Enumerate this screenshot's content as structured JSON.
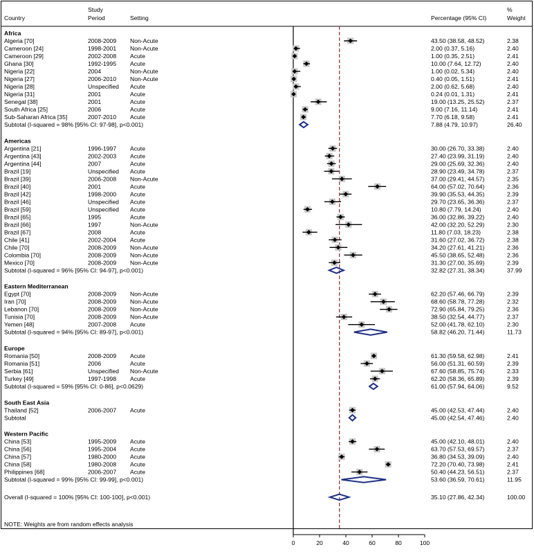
{
  "chart_data": {
    "type": "forest",
    "columns": {
      "country": "Country",
      "period": [
        "Study",
        "Period"
      ],
      "setting": "Setting",
      "estimate": "Percentage (95% CI)",
      "weight": [
        "%",
        "Weight"
      ]
    },
    "xlim": [
      0,
      100
    ],
    "xticks": [
      0,
      20,
      40,
      60,
      80,
      100
    ],
    "reference_line": 35.1,
    "groups": [
      {
        "name": "Africa",
        "studies": [
          {
            "country": "Algeria [70]",
            "period": "2008-2009",
            "setting": "Non-Acute",
            "est": 43.5,
            "lo": 38.58,
            "hi": 48.52,
            "label": "43.50 (38.58, 48.52)",
            "weight": "2.38"
          },
          {
            "country": "Cameroon [24]",
            "period": "1998-2001",
            "setting": "Non-Acute",
            "est": 2.0,
            "lo": 0.37,
            "hi": 5.16,
            "label": "2.00 (0.37, 5.16)",
            "weight": "2.40"
          },
          {
            "country": "Cameroon [29]",
            "period": "2002-2008",
            "setting": "Acute",
            "est": 1.0,
            "lo": 0.35,
            "hi": 2.51,
            "label": "1.00 (0.35, 2.51)",
            "weight": "2.41"
          },
          {
            "country": "Ghana [30]",
            "period": "1992-1995",
            "setting": "Acute",
            "est": 10.0,
            "lo": 7.64,
            "hi": 12.72,
            "label": "10.00 (7.64, 12.72)",
            "weight": "2.40"
          },
          {
            "country": "Nigeria [22]",
            "period": "2004",
            "setting": "Non-Acute",
            "est": 1.0,
            "lo": 0.02,
            "hi": 5.34,
            "label": "1.00 (0.02, 5.34)",
            "weight": "2.40"
          },
          {
            "country": "Nigeria [27]",
            "period": "2006-2010",
            "setting": "Non-Acute",
            "est": 0.4,
            "lo": 0.05,
            "hi": 1.51,
            "label": "0.40 (0.05, 1.51)",
            "weight": "2.41"
          },
          {
            "country": "Nigeria [28]",
            "period": "Unspecified",
            "setting": "Acute",
            "est": 2.0,
            "lo": 0.62,
            "hi": 5.68,
            "label": "2.00 (0.62, 5.68)",
            "weight": "2.40"
          },
          {
            "country": "Nigeria [31]",
            "period": "2001",
            "setting": "Acute",
            "est": 0.24,
            "lo": 0.01,
            "hi": 1.31,
            "label": "0.24 (0.01, 1.31)",
            "weight": "2.41"
          },
          {
            "country": "Senegal [38]",
            "period": "2001",
            "setting": "Acute",
            "est": 19.0,
            "lo": 13.25,
            "hi": 25.52,
            "label": "19.00 (13.25, 25.52)",
            "weight": "2.37"
          },
          {
            "country": "South Africa [25]",
            "period": "2006",
            "setting": "Acute",
            "est": 9.0,
            "lo": 7.16,
            "hi": 11.14,
            "label": "9.00 (7.16, 11.14)",
            "weight": "2.41"
          },
          {
            "country": "Sub-Saharan Africa [35]",
            "period": "2007-2010",
            "setting": "Acute",
            "est": 7.7,
            "lo": 6.18,
            "hi": 9.58,
            "label": "7.70 (6.18, 9.58)",
            "weight": "2.41"
          }
        ],
        "subtotal": {
          "label": "Subtotal  (I-squared = 98% [95% CI: 97-98], p<0.001)",
          "est": 7.88,
          "lo": 4.79,
          "hi": 10.97,
          "ci_label": "7.88 (4.79, 10.97)",
          "weight": "26.40"
        }
      },
      {
        "name": "Americas",
        "studies": [
          {
            "country": "Argentina [21]",
            "period": "1996-1997",
            "setting": "Acute",
            "est": 30.0,
            "lo": 26.7,
            "hi": 33.38,
            "label": "30.00 (26.70, 33.38)",
            "weight": "2.40"
          },
          {
            "country": "Argentina [43]",
            "period": "2002-2003",
            "setting": "Acute",
            "est": 27.4,
            "lo": 23.99,
            "hi": 31.19,
            "label": "27.40 (23.99, 31.19)",
            "weight": "2.40"
          },
          {
            "country": "Argentina [44]",
            "period": "2007",
            "setting": "Acute",
            "est": 29.0,
            "lo": 25.69,
            "hi": 32.36,
            "label": "29.00 (25.69, 32.36)",
            "weight": "2.40"
          },
          {
            "country": "Brazil [19]",
            "period": "Unspecified",
            "setting": "Acute",
            "est": 28.9,
            "lo": 23.49,
            "hi": 34.78,
            "label": "28.90 (23.49, 34.78)",
            "weight": "2.37"
          },
          {
            "country": "Brazil [39]",
            "period": "2006-2008",
            "setting": "Non-Acute",
            "est": 37.0,
            "lo": 29.41,
            "hi": 44.57,
            "label": "37.00 (29.41, 44.57)",
            "weight": "2.35"
          },
          {
            "country": "Brazil [40]",
            "period": "2001",
            "setting": "Acute",
            "est": 64.0,
            "lo": 57.02,
            "hi": 70.64,
            "label": "64.00 (57.02, 70.64)",
            "weight": "2.36"
          },
          {
            "country": "Brazil [42]",
            "period": "1998-2000",
            "setting": "Acute",
            "est": 39.9,
            "lo": 35.53,
            "hi": 44.35,
            "label": "39.90 (35.53, 44.35)",
            "weight": "2.39"
          },
          {
            "country": "Brazil [46]",
            "period": "Unspecified",
            "setting": "Acute",
            "est": 29.7,
            "lo": 23.65,
            "hi": 36.36,
            "label": "29.70 (23.65, 36.36)",
            "weight": "2.37"
          },
          {
            "country": "Brazil [59]",
            "period": "Unspecified",
            "setting": "Acute",
            "est": 10.8,
            "lo": 7.79,
            "hi": 14.24,
            "label": "10.80 (7.79, 14.24)",
            "weight": "2.40"
          },
          {
            "country": "Brazil [65]",
            "period": "1995",
            "setting": "Acute",
            "est": 36.0,
            "lo": 32.86,
            "hi": 39.22,
            "label": "36.00 (32.86, 39.22)",
            "weight": "2.40"
          },
          {
            "country": "Brazil [66]",
            "period": "1997",
            "setting": "Non-Acute",
            "est": 42.0,
            "lo": 32.2,
            "hi": 52.29,
            "label": "42.00 (32.20, 52.29)",
            "weight": "2.30"
          },
          {
            "country": "Brazil [67]",
            "period": "2008",
            "setting": "Acute",
            "est": 11.8,
            "lo": 7.03,
            "hi": 18.23,
            "label": "11.80 (7.03, 18.23)",
            "weight": "2.38"
          },
          {
            "country": "Chile [41]",
            "period": "2002-2004",
            "setting": "Acute",
            "est": 31.6,
            "lo": 27.02,
            "hi": 36.72,
            "label": "31.60 (27.02, 36.72)",
            "weight": "2.38"
          },
          {
            "country": "Chile [70]",
            "period": "2008-2009",
            "setting": "Non-Acute",
            "est": 34.2,
            "lo": 27.61,
            "hi": 41.21,
            "label": "34.20 (27.61, 41.21)",
            "weight": "2.36"
          },
          {
            "country": "Colombia [70]",
            "period": "2008-2009",
            "setting": "Non-Acute",
            "est": 45.5,
            "lo": 38.65,
            "hi": 52.48,
            "label": "45.50 (38.65, 52.48)",
            "weight": "2.36"
          },
          {
            "country": "Mexico [70]",
            "period": "2008-2009",
            "setting": "Non-Acute",
            "est": 31.3,
            "lo": 27.0,
            "hi": 35.69,
            "label": "31.30 (27.00, 35.69)",
            "weight": "2.39"
          }
        ],
        "subtotal": {
          "label": "Subtotal  (I-squared = 96% [95% CI: 94-97], p<0.001)",
          "est": 32.82,
          "lo": 27.31,
          "hi": 38.34,
          "ci_label": "32.82 (27.31, 38.34)",
          "weight": "37.99"
        }
      },
      {
        "name": "Eastern Mediterranean",
        "studies": [
          {
            "country": "Egypt [70]",
            "period": "2008-2009",
            "setting": "Non-Acute",
            "est": 62.2,
            "lo": 57.46,
            "hi": 66.79,
            "label": "62.20 (57.46, 66.79)",
            "weight": "2.39"
          },
          {
            "country": "Iran [70]",
            "period": "2008-2009",
            "setting": "Non-Acute",
            "est": 68.6,
            "lo": 58.78,
            "hi": 77.28,
            "label": "68.60 (58.78, 77.28)",
            "weight": "2.32"
          },
          {
            "country": "Lebanon [70]",
            "period": "2008-2009",
            "setting": "Non-Acute",
            "est": 72.9,
            "lo": 65.84,
            "hi": 79.25,
            "label": "72.90 (65.84, 79.25)",
            "weight": "2.36"
          },
          {
            "country": "Tunisia [70]",
            "period": "2008-2009",
            "setting": "Non-Acute",
            "est": 38.5,
            "lo": 32.54,
            "hi": 44.77,
            "label": "38.50 (32.54, 44.77)",
            "weight": "2.37"
          },
          {
            "country": "Yemen [48]",
            "period": "2007-2008",
            "setting": "Acute",
            "est": 52.0,
            "lo": 41.78,
            "hi": 62.1,
            "label": "52.00 (41.78, 62.10)",
            "weight": "2.30"
          }
        ],
        "subtotal": {
          "label": "Subtotal  (I-squared = 94% [95% CI: 89-97], p<0.001)",
          "est": 58.82,
          "lo": 46.2,
          "hi": 71.44,
          "ci_label": "58.82 (46.20, 71.44)",
          "weight": "11.73"
        }
      },
      {
        "name": "Europe",
        "studies": [
          {
            "country": "Romania [50]",
            "period": "2008-2009",
            "setting": "Acute",
            "est": 61.3,
            "lo": 59.58,
            "hi": 62.98,
            "label": "61.30 (59.58, 62.98)",
            "weight": "2.41"
          },
          {
            "country": "Romania [51]",
            "period": "2006",
            "setting": "Acute",
            "est": 56.0,
            "lo": 51.31,
            "hi": 60.59,
            "label": "56.00 (51.31, 60.59)",
            "weight": "2.39"
          },
          {
            "country": "Serbia [61]",
            "period": "Unspecified",
            "setting": "Non-Acute",
            "est": 67.6,
            "lo": 58.85,
            "hi": 75.74,
            "label": "67.60 (58.85, 75.74)",
            "weight": "2.33"
          },
          {
            "country": "Turkey [49]",
            "period": "1997-1998",
            "setting": "Acute",
            "est": 62.2,
            "lo": 58.36,
            "hi": 65.89,
            "label": "62.20 (58.36, 65.89)",
            "weight": "2.39"
          }
        ],
        "subtotal": {
          "label": "Subtotal  (I-squared = 59% [95% CI: 0-86], p<0.0629)",
          "est": 61.0,
          "lo": 57.94,
          "hi": 64.06,
          "ci_label": "61.00 (57.94, 64.06)",
          "weight": "9.52"
        }
      },
      {
        "name": "South East Asia",
        "studies": [
          {
            "country": "Thailand [52]",
            "period": "2006-2007",
            "setting": "Acute",
            "est": 45.0,
            "lo": 42.53,
            "hi": 47.44,
            "label": "45.00 (42.53, 47.44)",
            "weight": "2.40"
          }
        ],
        "subtotal": {
          "label": "Subtotal",
          "est": 45.0,
          "lo": 42.54,
          "hi": 47.46,
          "ci_label": "45.00 (42.54, 47.46)",
          "weight": "2.40"
        }
      },
      {
        "name": "Western Pacific",
        "studies": [
          {
            "country": "China [53]",
            "period": "1995-2009",
            "setting": "Acute",
            "est": 45.0,
            "lo": 42.1,
            "hi": 48.01,
            "label": "45.00 (42.10, 48.01)",
            "weight": "2.40"
          },
          {
            "country": "China [56]",
            "period": "1995-2004",
            "setting": "Acute",
            "est": 63.7,
            "lo": 57.53,
            "hi": 69.57,
            "label": "63.70 (57.53, 69.57)",
            "weight": "2.37"
          },
          {
            "country": "China [57]",
            "period": "1980-2000",
            "setting": "Acute",
            "est": 36.8,
            "lo": 34.53,
            "hi": 39.09,
            "label": "36.80 (34.53, 39.09)",
            "weight": "2.40"
          },
          {
            "country": "China [58]",
            "period": "1980-2008",
            "setting": "Acute",
            "est": 72.2,
            "lo": 70.4,
            "hi": 73.98,
            "label": "72.20 (70.40, 73.98)",
            "weight": "2.41"
          },
          {
            "country": "Philippines [68]",
            "period": "2006-2007",
            "setting": "Acute",
            "est": 50.4,
            "lo": 44.23,
            "hi": 56.51,
            "label": "50.40 (44.23, 56.51)",
            "weight": "2.37"
          }
        ],
        "subtotal": {
          "label": "Subtotal  (I-squared = 99% [95% CI: 99-99], p<0.001)",
          "est": 53.6,
          "lo": 36.59,
          "hi": 70.61,
          "ci_label": "53.60 (36.59, 70.61)",
          "weight": "11.95"
        }
      }
    ],
    "overall": {
      "label": "Overall  (I-squared = 100% [95% CI: 100-100], p<0.001)",
      "est": 35.1,
      "lo": 27.86,
      "hi": 42.34,
      "ci_label": "35.10 (27.86, 42.34)",
      "weight": "100.00"
    },
    "note": "NOTE: Weights are from random effects analysis",
    "colors": {
      "diamond": "#1f2f86",
      "refline": "#8b2a2a",
      "box": "#c8c8c8",
      "text": "#000000"
    }
  }
}
